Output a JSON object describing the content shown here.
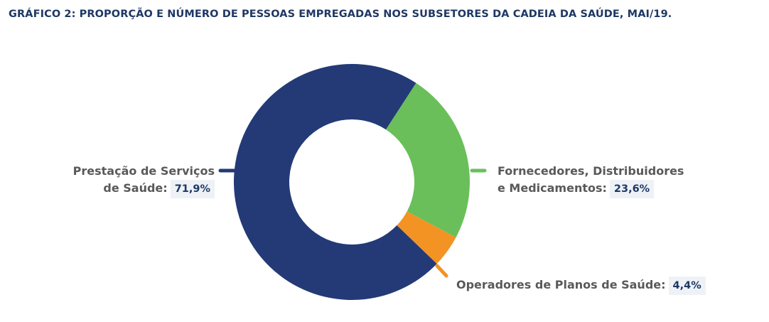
{
  "title": "GRÁFICO 2: PROPORÇÃO E NÚMERO DE PESSOAS EMPREGADAS NOS SUBSETORES DA CADEIA DA SAÚDE, MAI/19.",
  "chart_data": {
    "type": "pie",
    "donut": true,
    "title": "GRÁFICO 2: PROPORÇÃO E NÚMERO DE PESSOAS EMPREGADAS NOS SUBSETORES DA CADEIA DA SAÚDE, MAI/19.",
    "slices": [
      {
        "label_line1": "Fornecedores, Distribuidores",
        "label_line2": "e Medicamentos:",
        "value": 23.6,
        "value_label": "23,6%",
        "color": "#6abf5a"
      },
      {
        "label_line1": "Operadores de Planos de Saúde:",
        "label_line2": "",
        "value": 4.4,
        "value_label": "4,4%",
        "color": "#f39323"
      },
      {
        "label_line1": "Prestação de Serviços",
        "label_line2": "de Saúde:",
        "value": 71.9,
        "value_label": "71,9%",
        "color": "#233a77"
      }
    ],
    "start_angle_deg": 33,
    "legend": "none"
  }
}
